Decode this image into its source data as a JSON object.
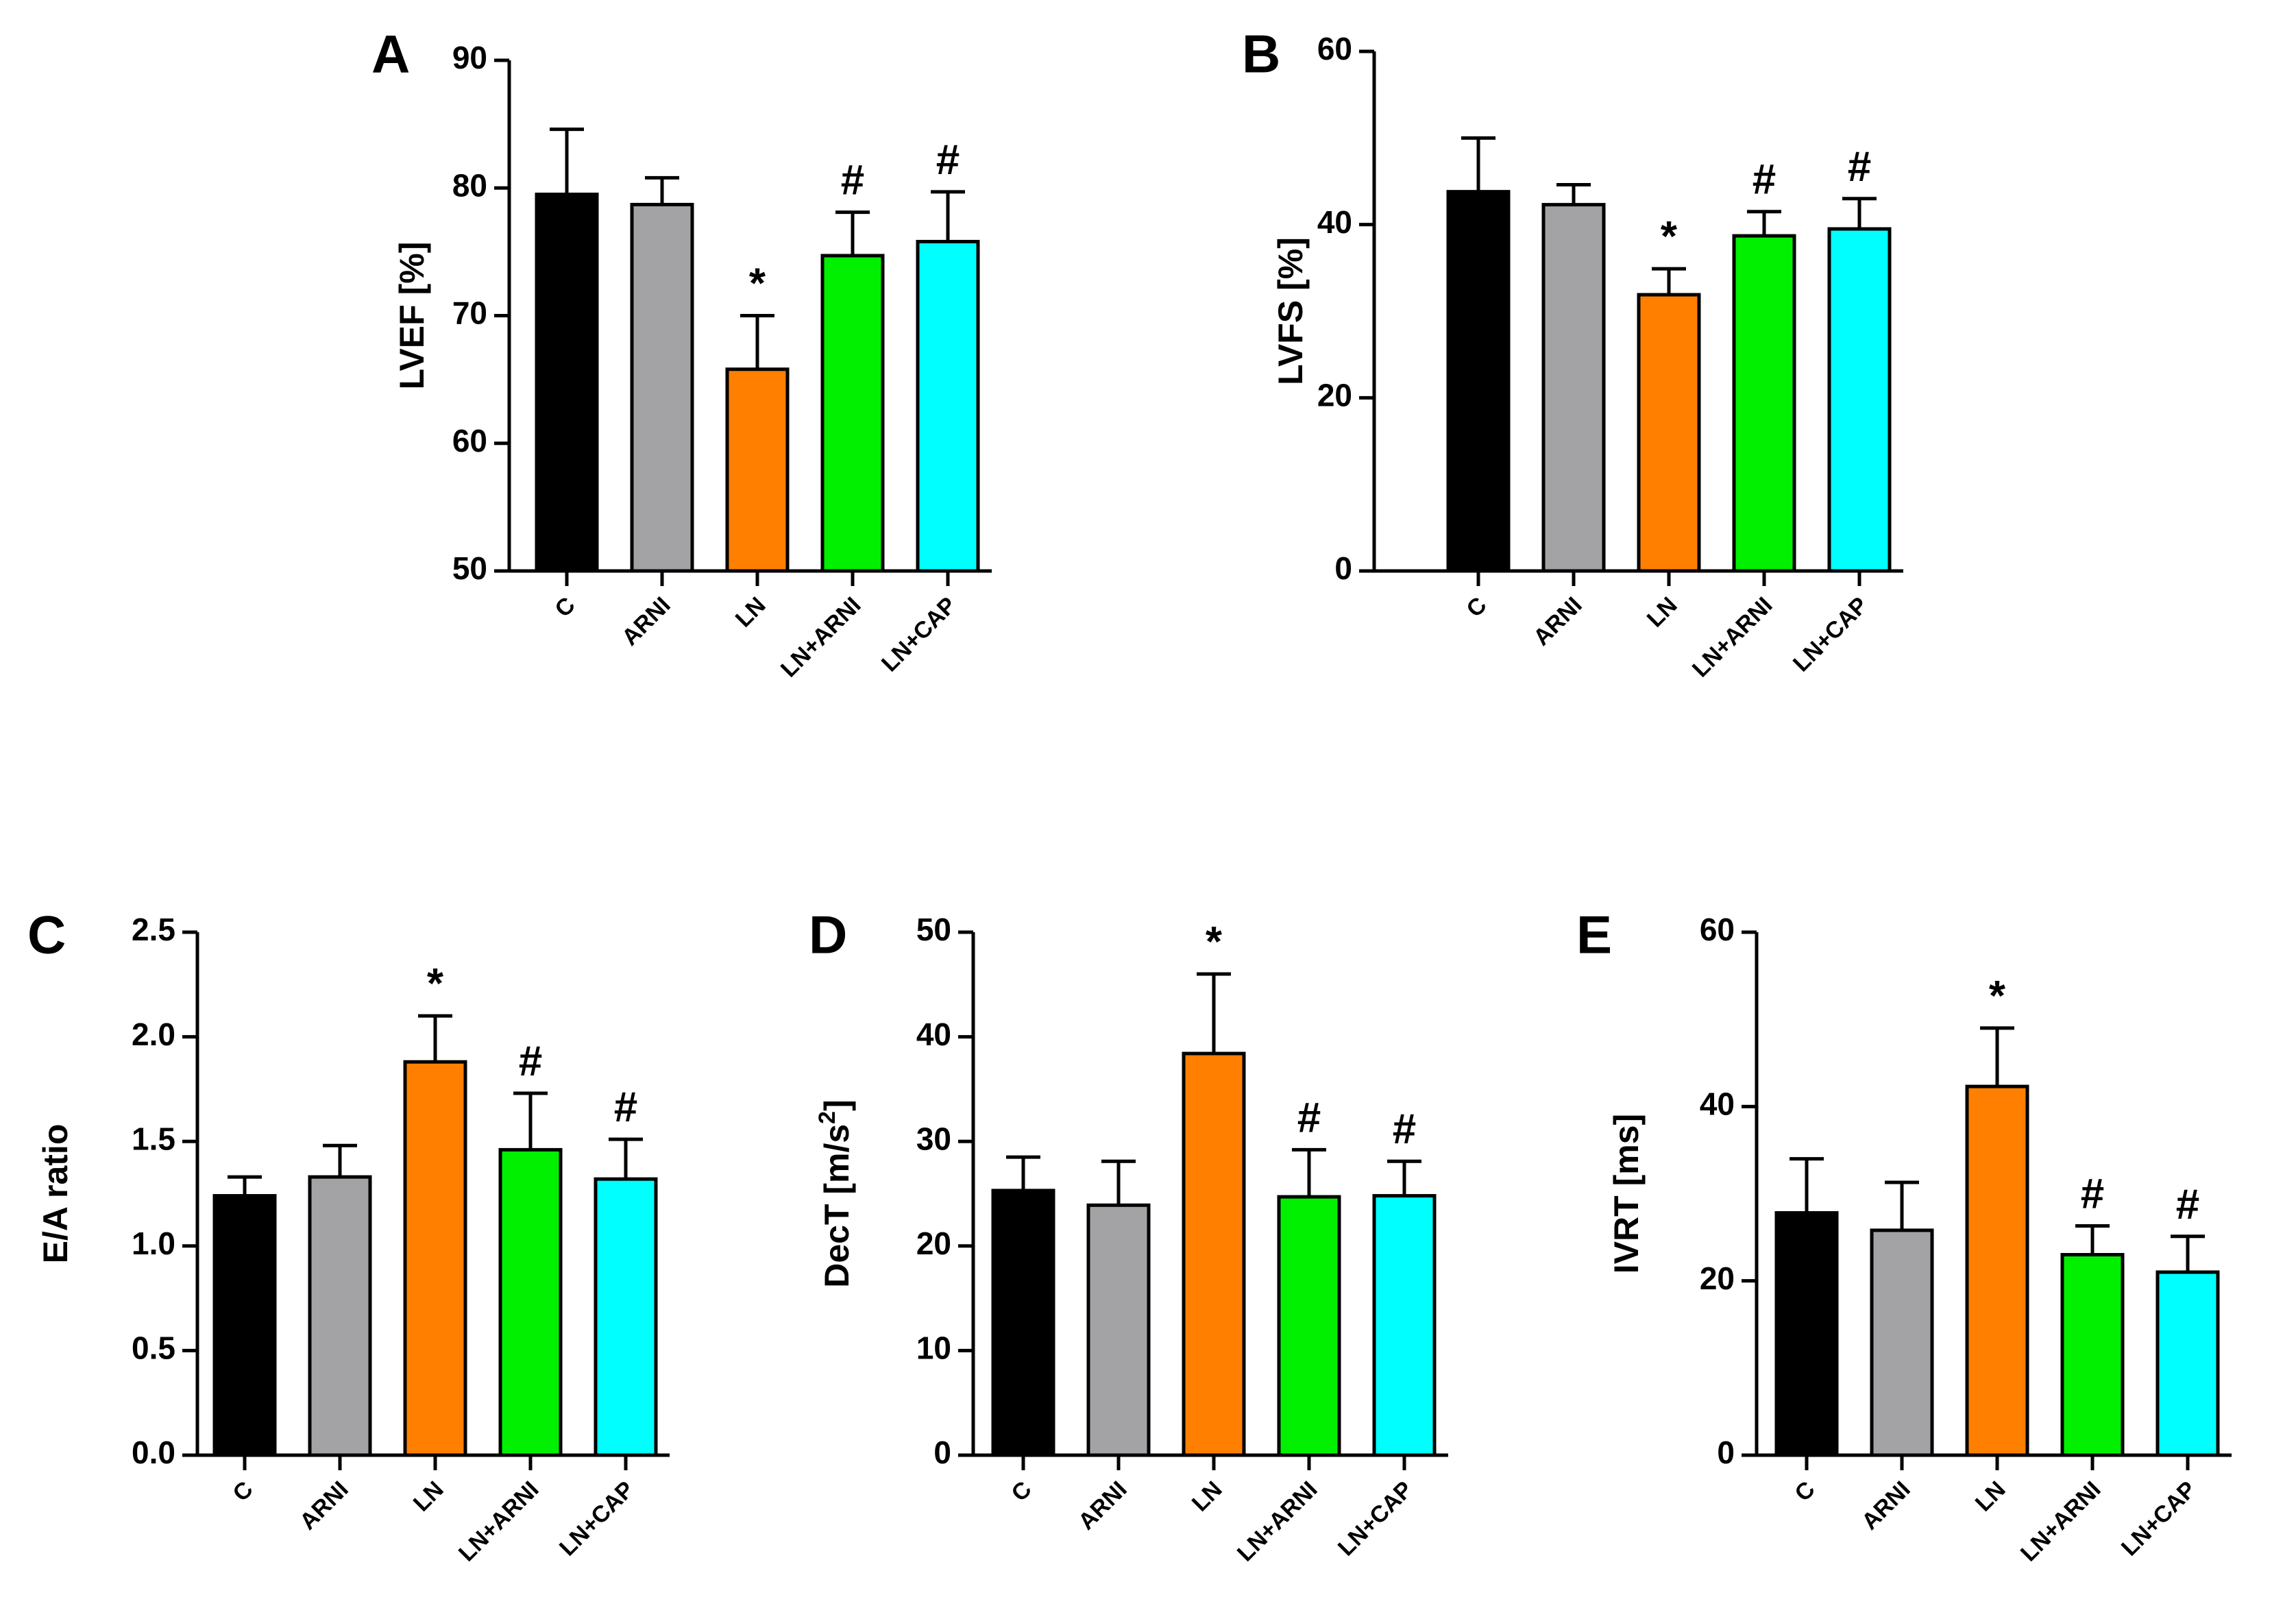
{
  "chart_data": [
    {
      "panel": "A",
      "type": "bar",
      "ylabel": "LVEF [%]",
      "ylim": [
        50,
        90
      ],
      "yticks": [
        50,
        60,
        70,
        80,
        90
      ],
      "categories": [
        "C",
        "ARNI",
        "LN",
        "LN+ARNI",
        "LN+CAP"
      ],
      "values": [
        79.5,
        78.7,
        65.8,
        74.7,
        75.8
      ],
      "errors": [
        5.1,
        2.1,
        4.2,
        3.4,
        3.9
      ],
      "annotations": [
        "",
        "",
        "*",
        "#",
        "#"
      ],
      "colors": [
        "#000000",
        "#a3a3a6",
        "#ff8000",
        "#00f000",
        "#00ffff"
      ]
    },
    {
      "panel": "B",
      "type": "bar",
      "ylabel": "LVFS [%]",
      "ylim": [
        0,
        60
      ],
      "yticks": [
        0,
        20,
        40,
        60
      ],
      "categories": [
        "C",
        "ARNI",
        "LN",
        "LN+ARNI",
        "LN+CAP"
      ],
      "values": [
        43.8,
        42.3,
        31.9,
        38.7,
        39.5
      ],
      "errors": [
        6.2,
        2.3,
        3.0,
        2.8,
        3.5
      ],
      "annotations": [
        "",
        "",
        "*",
        "#",
        "#"
      ],
      "colors": [
        "#000000",
        "#a3a3a6",
        "#ff8000",
        "#00f000",
        "#00ffff"
      ]
    },
    {
      "panel": "C",
      "type": "bar",
      "ylabel": "E/A ratio",
      "ylim": [
        0,
        2.5
      ],
      "yticks": [
        "0.0",
        "0.5",
        "1.0",
        "1.5",
        "2.0",
        "2.5"
      ],
      "categories": [
        "C",
        "ARNI",
        "LN",
        "LN+ARNI",
        "LN+CAP"
      ],
      "values": [
        1.24,
        1.33,
        1.88,
        1.46,
        1.32
      ],
      "errors": [
        0.09,
        0.15,
        0.22,
        0.27,
        0.19
      ],
      "annotations": [
        "",
        "",
        "*",
        "#",
        "#"
      ],
      "colors": [
        "#000000",
        "#a3a3a6",
        "#ff8000",
        "#00f000",
        "#00ffff"
      ]
    },
    {
      "panel": "D",
      "type": "bar",
      "ylabel": "DecT [m/s",
      "ylabel_sup": "2",
      "ylabel_end": "]",
      "ylim": [
        0,
        50
      ],
      "yticks": [
        0,
        10,
        20,
        30,
        40,
        50
      ],
      "categories": [
        "C",
        "ARNI",
        "LN",
        "LN+ARNI",
        "LN+CAP"
      ],
      "values": [
        25.3,
        23.9,
        38.4,
        24.7,
        24.8
      ],
      "errors": [
        3.2,
        4.2,
        7.6,
        4.5,
        3.3
      ],
      "annotations": [
        "",
        "",
        "*",
        "#",
        "#"
      ],
      "colors": [
        "#000000",
        "#a3a3a6",
        "#ff8000",
        "#00f000",
        "#00ffff"
      ]
    },
    {
      "panel": "E",
      "type": "bar",
      "ylabel": "IVRT [ms]",
      "ylim": [
        0,
        60
      ],
      "yticks": [
        0,
        20,
        40,
        60
      ],
      "categories": [
        "C",
        "ARNI",
        "LN",
        "LN+ARNI",
        "LN+CAP"
      ],
      "values": [
        27.8,
        25.8,
        42.3,
        23.0,
        21.0
      ],
      "errors": [
        6.2,
        5.5,
        6.7,
        3.3,
        4.1
      ],
      "annotations": [
        "",
        "",
        "*",
        "#",
        "#"
      ],
      "colors": [
        "#000000",
        "#a3a3a6",
        "#ff8000",
        "#00f000",
        "#00ffff"
      ]
    }
  ]
}
